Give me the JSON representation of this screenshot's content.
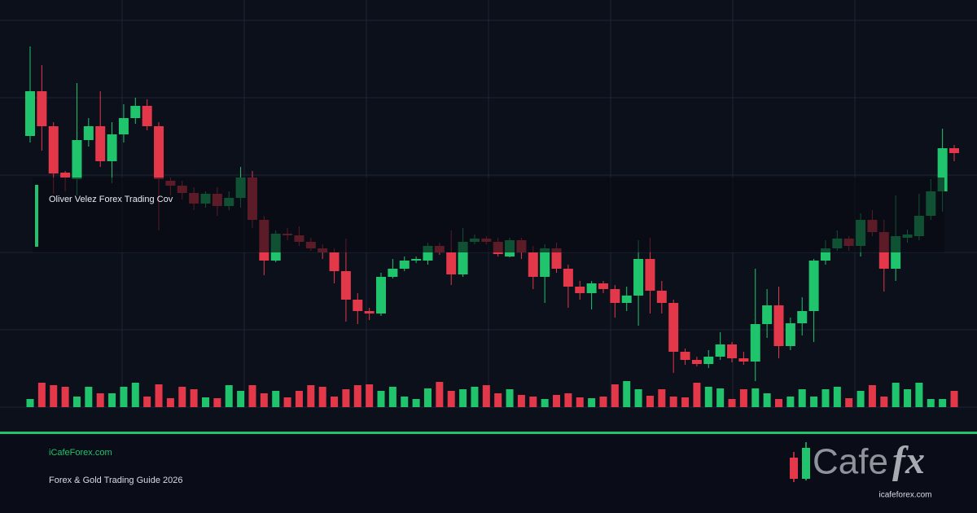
{
  "overlay_title": "Oliver Velez Forex Trading Cov",
  "footer": {
    "site": "iCafeForex.com",
    "subtitle": "Forex & Gold Trading Guide 2026"
  },
  "logo": {
    "word": "Cafe",
    "accent": "fx",
    "url": "icafeforex.com"
  },
  "chart_data": {
    "type": "candlestick",
    "up_color": "#1fc46c",
    "down_color": "#e3374a",
    "grid": true,
    "ylim": [
      0,
      475
    ],
    "yticks": [
      0,
      95,
      190,
      285,
      380,
      475
    ],
    "volume_ylim": [
      0,
      100
    ],
    "open": [
      333,
      388,
      345,
      288,
      280,
      328,
      345,
      302,
      335,
      355,
      370,
      345,
      278,
      272,
      263,
      250,
      262,
      247,
      257,
      282,
      230,
      180,
      213,
      211,
      203,
      195,
      190,
      167,
      132,
      118,
      115,
      160,
      170,
      180,
      180,
      198,
      190,
      163,
      203,
      207,
      203,
      185,
      205,
      190,
      160,
      195,
      170,
      148,
      140,
      152,
      145,
      128,
      137,
      182,
      143,
      128,
      68,
      58,
      53,
      62,
      77,
      60,
      56,
      102,
      125,
      75,
      103,
      118,
      180,
      195,
      207,
      198,
      230,
      215,
      170,
      208,
      210,
      235,
      265,
      318
    ],
    "high": [
      443,
      420,
      350,
      290,
      398,
      355,
      388,
      350,
      372,
      380,
      378,
      350,
      282,
      278,
      270,
      265,
      270,
      265,
      295,
      290,
      235,
      217,
      220,
      222,
      208,
      200,
      195,
      207,
      140,
      122,
      165,
      182,
      185,
      185,
      202,
      202,
      217,
      220,
      212,
      210,
      208,
      208,
      208,
      198,
      200,
      202,
      175,
      155,
      155,
      155,
      150,
      148,
      205,
      208,
      155,
      132,
      72,
      62,
      70,
      92,
      80,
      68,
      170,
      145,
      148,
      110,
      135,
      182,
      205,
      217,
      210,
      238,
      242,
      230,
      260,
      218,
      262,
      280,
      342,
      322
    ],
    "low": [
      325,
      315,
      262,
      265,
      260,
      320,
      295,
      275,
      325,
      348,
      340,
      217,
      260,
      255,
      242,
      245,
      235,
      242,
      245,
      220,
      162,
      178,
      205,
      198,
      192,
      182,
      152,
      105,
      102,
      107,
      112,
      158,
      167,
      177,
      175,
      187,
      150,
      160,
      200,
      200,
      185,
      184,
      182,
      145,
      128,
      165,
      122,
      132,
      120,
      140,
      110,
      118,
      100,
      115,
      115,
      42,
      52,
      50,
      48,
      58,
      55,
      52,
      32,
      85,
      60,
      70,
      88,
      80,
      175,
      192,
      192,
      185,
      210,
      142,
      155,
      202,
      205,
      230,
      240,
      302
    ],
    "close": [
      388,
      345,
      287,
      282,
      328,
      345,
      302,
      335,
      355,
      370,
      345,
      280,
      272,
      263,
      250,
      262,
      247,
      257,
      282,
      230,
      180,
      213,
      211,
      203,
      195,
      190,
      167,
      132,
      118,
      115,
      160,
      170,
      180,
      182,
      198,
      190,
      163,
      203,
      207,
      203,
      188,
      205,
      190,
      160,
      195,
      170,
      148,
      140,
      152,
      145,
      128,
      137,
      182,
      143,
      128,
      68,
      58,
      53,
      62,
      77,
      60,
      56,
      102,
      125,
      75,
      103,
      118,
      180,
      195,
      207,
      198,
      230,
      215,
      170,
      210,
      212,
      235,
      265,
      318,
      312
    ],
    "volume": [
      10,
      30,
      27,
      25,
      13,
      25,
      17,
      17,
      25,
      30,
      13,
      28,
      11,
      25,
      22,
      12,
      11,
      27,
      20,
      27,
      17,
      20,
      12,
      20,
      27,
      25,
      13,
      22,
      27,
      28,
      20,
      25,
      13,
      10,
      23,
      31,
      20,
      22,
      25,
      27,
      17,
      22,
      15,
      13,
      10,
      15,
      17,
      12,
      11,
      13,
      28,
      32,
      22,
      14,
      22,
      13,
      12,
      30,
      25,
      23,
      10,
      22,
      23,
      17,
      10,
      13,
      22,
      13,
      22,
      25,
      11,
      20,
      27,
      13,
      30,
      22,
      30,
      10,
      10,
      20
    ]
  }
}
